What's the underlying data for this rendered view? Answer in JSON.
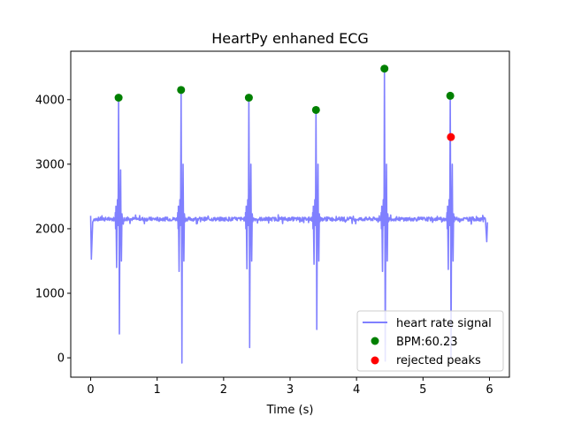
{
  "chart_data": {
    "type": "line",
    "title": "HeartPy enhaned ECG",
    "xlabel": "Time (s)",
    "ylabel": "",
    "xlim": [
      -0.3,
      6.3
    ],
    "ylim": [
      -300,
      4750
    ],
    "x_ticks": [
      0,
      1,
      2,
      3,
      4,
      5,
      6
    ],
    "y_ticks": [
      0,
      1000,
      2000,
      3000,
      4000
    ],
    "grid": false,
    "legend_position": "lower-right",
    "colors": {
      "signal": "#8080ff",
      "accepted_peaks": "#008000",
      "rejected_peaks": "#ff0000"
    },
    "series": [
      {
        "name": "heart rate signal",
        "style": "line",
        "baseline": 2150,
        "start": {
          "x": [
            0.0,
            0.01,
            0.03,
            0.05
          ],
          "y": [
            2200,
            1530,
            2100,
            2150
          ]
        },
        "end": {
          "x": [
            5.94,
            5.96,
            5.97
          ],
          "y": [
            2140,
            1800,
            2100
          ]
        },
        "beats": [
          {
            "r_time": 0.42,
            "r_peak": 4030,
            "s_min": 370,
            "q_min": 1400,
            "t_peak": 2910
          },
          {
            "r_time": 1.36,
            "r_peak": 4150,
            "s_min": -80,
            "q_min": 1340,
            "t_peak": 3000
          },
          {
            "r_time": 2.38,
            "r_peak": 4030,
            "s_min": 160,
            "q_min": 1380,
            "t_peak": 3000
          },
          {
            "r_time": 3.39,
            "r_peak": 3840,
            "s_min": 440,
            "q_min": 1450,
            "t_peak": 3000
          },
          {
            "r_time": 4.42,
            "r_peak": 4480,
            "s_min": -50,
            "q_min": 1340,
            "t_peak": 3000
          },
          {
            "r_time": 5.41,
            "r_peak": 4060,
            "s_min": 0,
            "q_min": 1370,
            "t_peak": 3000
          }
        ]
      },
      {
        "name": "BPM:60.23",
        "style": "scatter",
        "x": [
          0.42,
          1.36,
          2.38,
          3.39,
          4.42,
          5.41
        ],
        "y": [
          4030,
          4150,
          4030,
          3840,
          4480,
          4060
        ]
      },
      {
        "name": "rejected peaks",
        "style": "scatter",
        "x": [
          5.42
        ],
        "y": [
          3420
        ]
      }
    ]
  }
}
